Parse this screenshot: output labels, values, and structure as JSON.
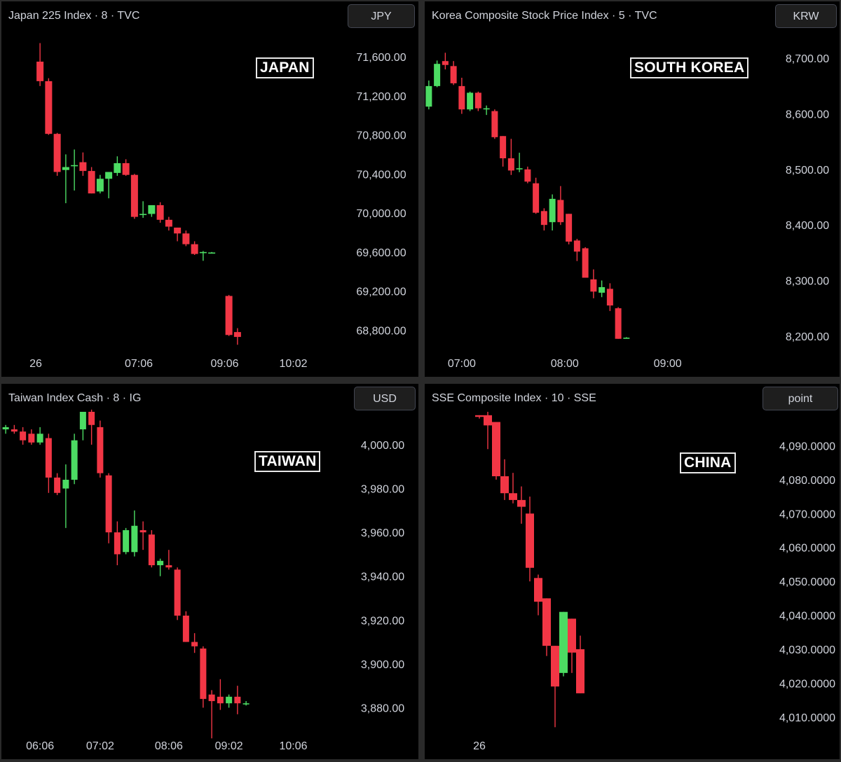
{
  "colors": {
    "up": "#4cdc63",
    "down": "#f23645",
    "background": "#000000",
    "text": "#d1d4dc"
  },
  "chart_data": [
    {
      "type": "candlestick",
      "title": "Japan 225 Index · 8 · TVC",
      "currency": "JPY",
      "country_label": "JAPAN",
      "ylim": [
        68580,
        71880
      ],
      "yticks": [
        68800,
        69200,
        69600,
        70000,
        70400,
        70800,
        71200,
        71600
      ],
      "ytick_labels": [
        "68,800.00",
        "69,200.00",
        "69,600.00",
        "70,000.00",
        "70,400.00",
        "70,800.00",
        "71,200.00",
        "71,600.00"
      ],
      "xlim": [
        0,
        40
      ],
      "xticks": [
        {
          "x": 4,
          "label": "26"
        },
        {
          "x": 16,
          "label": "07:06"
        },
        {
          "x": 26,
          "label": "09:06"
        },
        {
          "x": 34,
          "label": "10:02"
        }
      ],
      "candles": [
        {
          "x": 4.5,
          "o": 71550,
          "h": 71740,
          "l": 71300,
          "c": 71350
        },
        {
          "x": 5.5,
          "o": 71350,
          "h": 71380,
          "l": 70800,
          "c": 70810
        },
        {
          "x": 6.5,
          "o": 70810,
          "h": 70820,
          "l": 70380,
          "c": 70420
        },
        {
          "x": 7.5,
          "o": 70440,
          "h": 70600,
          "l": 70100,
          "c": 70470
        },
        {
          "x": 8.5,
          "o": 70490,
          "h": 70650,
          "l": 70230,
          "c": 70490
        },
        {
          "x": 9.5,
          "o": 70520,
          "h": 70620,
          "l": 70380,
          "c": 70430
        },
        {
          "x": 10.5,
          "o": 70430,
          "h": 70470,
          "l": 70200,
          "c": 70200
        },
        {
          "x": 11.5,
          "o": 70220,
          "h": 70390,
          "l": 70200,
          "c": 70350
        },
        {
          "x": 12.5,
          "o": 70350,
          "h": 70410,
          "l": 70150,
          "c": 70420
        },
        {
          "x": 13.5,
          "o": 70410,
          "h": 70580,
          "l": 70380,
          "c": 70510
        },
        {
          "x": 14.5,
          "o": 70510,
          "h": 70550,
          "l": 70380,
          "c": 70390
        },
        {
          "x": 15.5,
          "o": 70390,
          "h": 70400,
          "l": 69940,
          "c": 69960
        },
        {
          "x": 16.5,
          "o": 69980,
          "h": 70120,
          "l": 69950,
          "c": 69990
        },
        {
          "x": 17.5,
          "o": 69990,
          "h": 70070,
          "l": 69960,
          "c": 70080
        },
        {
          "x": 18.5,
          "o": 70080,
          "h": 70110,
          "l": 69900,
          "c": 69930
        },
        {
          "x": 19.5,
          "o": 69930,
          "h": 69960,
          "l": 69820,
          "c": 69860
        },
        {
          "x": 20.5,
          "o": 69850,
          "h": 69850,
          "l": 69710,
          "c": 69790
        },
        {
          "x": 21.5,
          "o": 69790,
          "h": 69820,
          "l": 69660,
          "c": 69680
        },
        {
          "x": 22.5,
          "o": 69680,
          "h": 69710,
          "l": 69570,
          "c": 69580
        },
        {
          "x": 23.5,
          "o": 69590,
          "h": 69610,
          "l": 69510,
          "c": 69600
        },
        {
          "x": 24.5,
          "o": 69590,
          "h": 69600,
          "l": 69590,
          "c": 69595
        },
        {
          "x": 26.5,
          "o": 69150,
          "h": 69160,
          "l": 68740,
          "c": 68750
        },
        {
          "x": 27.5,
          "o": 68780,
          "h": 68820,
          "l": 68650,
          "c": 68730
        }
      ]
    },
    {
      "type": "candlestick",
      "title": "Korea Composite Stock Price Index · 5 · TVC",
      "currency": "KRW",
      "country_label": "SOUTH KOREA",
      "ylim": [
        8172,
        8752
      ],
      "yticks": [
        8200,
        8300,
        8400,
        8500,
        8600,
        8700
      ],
      "ytick_labels": [
        "8,200.00",
        "8,300.00",
        "8,400.00",
        "8,500.00",
        "8,600.00",
        "8,700.00"
      ],
      "xlim": [
        0,
        40
      ],
      "xticks": [
        {
          "x": 4.5,
          "label": "07:00"
        },
        {
          "x": 17,
          "label": "08:00"
        },
        {
          "x": 29.5,
          "label": "09:00"
        }
      ],
      "candles": [
        {
          "x": 0.5,
          "o": 8613,
          "h": 8660,
          "l": 8608,
          "c": 8650
        },
        {
          "x": 1.5,
          "o": 8650,
          "h": 8696,
          "l": 8648,
          "c": 8690
        },
        {
          "x": 2.5,
          "o": 8695,
          "h": 8710,
          "l": 8680,
          "c": 8688
        },
        {
          "x": 3.5,
          "o": 8686,
          "h": 8695,
          "l": 8652,
          "c": 8655
        },
        {
          "x": 4.5,
          "o": 8650,
          "h": 8665,
          "l": 8600,
          "c": 8608
        },
        {
          "x": 5.5,
          "o": 8608,
          "h": 8640,
          "l": 8605,
          "c": 8638
        },
        {
          "x": 6.5,
          "o": 8638,
          "h": 8640,
          "l": 8605,
          "c": 8610
        },
        {
          "x": 7.5,
          "o": 8608,
          "h": 8615,
          "l": 8598,
          "c": 8610
        },
        {
          "x": 8.5,
          "o": 8605,
          "h": 8608,
          "l": 8555,
          "c": 8558
        },
        {
          "x": 9.5,
          "o": 8560,
          "h": 8560,
          "l": 8505,
          "c": 8520
        },
        {
          "x": 10.5,
          "o": 8520,
          "h": 8555,
          "l": 8490,
          "c": 8498
        },
        {
          "x": 11.5,
          "o": 8500,
          "h": 8530,
          "l": 8495,
          "c": 8502
        },
        {
          "x": 12.5,
          "o": 8500,
          "h": 8505,
          "l": 8475,
          "c": 8478
        },
        {
          "x": 13.5,
          "o": 8475,
          "h": 8485,
          "l": 8420,
          "c": 8422
        },
        {
          "x": 14.5,
          "o": 8425,
          "h": 8430,
          "l": 8390,
          "c": 8400
        },
        {
          "x": 15.5,
          "o": 8405,
          "h": 8455,
          "l": 8390,
          "c": 8447
        },
        {
          "x": 16.5,
          "o": 8445,
          "h": 8470,
          "l": 8400,
          "c": 8405
        },
        {
          "x": 17.5,
          "o": 8420,
          "h": 8420,
          "l": 8365,
          "c": 8370
        },
        {
          "x": 18.5,
          "o": 8372,
          "h": 8375,
          "l": 8335,
          "c": 8352
        },
        {
          "x": 19.5,
          "o": 8358,
          "h": 8360,
          "l": 8305,
          "c": 8305
        },
        {
          "x": 20.5,
          "o": 8302,
          "h": 8320,
          "l": 8268,
          "c": 8280
        },
        {
          "x": 21.5,
          "o": 8278,
          "h": 8300,
          "l": 8270,
          "c": 8288
        },
        {
          "x": 22.5,
          "o": 8285,
          "h": 8295,
          "l": 8245,
          "c": 8255
        },
        {
          "x": 23.5,
          "o": 8250,
          "h": 8252,
          "l": 8195,
          "c": 8195
        },
        {
          "x": 24.5,
          "o": 8197,
          "h": 8198,
          "l": 8196,
          "c": 8197
        }
      ]
    },
    {
      "type": "candlestick",
      "title": "Taiwan Index Cash · 8 · IG",
      "currency": "USD",
      "country_label": "TAIWAN",
      "ylim": [
        3868,
        4015
      ],
      "yticks": [
        3880,
        3900,
        3920,
        3940,
        3960,
        3980,
        4000
      ],
      "ytick_labels": [
        "3,880.00",
        "3,900.00",
        "3,920.00",
        "3,940.00",
        "3,960.00",
        "3,980.00",
        "4,000.00"
      ],
      "xlim": [
        0,
        40
      ],
      "xticks": [
        {
          "x": 4.5,
          "label": "06:06"
        },
        {
          "x": 11.5,
          "label": "07:02"
        },
        {
          "x": 19.5,
          "label": "08:06"
        },
        {
          "x": 26.5,
          "label": "09:02"
        },
        {
          "x": 34,
          "label": "10:06"
        }
      ],
      "candles": [
        {
          "x": 0.5,
          "o": 4007,
          "h": 4009,
          "l": 4005,
          "c": 4008
        },
        {
          "x": 1.5,
          "o": 4007,
          "h": 4009,
          "l": 4005,
          "c": 4006
        },
        {
          "x": 2.5,
          "o": 4006,
          "h": 4008,
          "l": 4000,
          "c": 4002
        },
        {
          "x": 3.5,
          "o": 4005,
          "h": 4007,
          "l": 4000,
          "c": 4001
        },
        {
          "x": 4.5,
          "o": 4001,
          "h": 4008,
          "l": 4000,
          "c": 4005
        },
        {
          "x": 5.5,
          "o": 4003,
          "h": 4005,
          "l": 3978,
          "c": 3985
        },
        {
          "x": 6.5,
          "o": 3985,
          "h": 3987,
          "l": 3977,
          "c": 3978
        },
        {
          "x": 7.5,
          "o": 3980,
          "h": 3991,
          "l": 3962,
          "c": 3984
        },
        {
          "x": 8.5,
          "o": 3984,
          "h": 4005,
          "l": 3982,
          "c": 4002
        },
        {
          "x": 9.5,
          "o": 4007,
          "h": 4015,
          "l": 4002,
          "c": 4015
        },
        {
          "x": 10.5,
          "o": 4015,
          "h": 4016,
          "l": 4000,
          "c": 4009
        },
        {
          "x": 11.5,
          "o": 4008,
          "h": 4011,
          "l": 3985,
          "c": 3987
        },
        {
          "x": 12.5,
          "o": 3986,
          "h": 3987,
          "l": 3955,
          "c": 3960
        },
        {
          "x": 13.5,
          "o": 3960,
          "h": 3965,
          "l": 3945,
          "c": 3950
        },
        {
          "x": 14.5,
          "o": 3951,
          "h": 3962,
          "l": 3950,
          "c": 3961
        },
        {
          "x": 15.5,
          "o": 3951,
          "h": 3970,
          "l": 3949,
          "c": 3963
        },
        {
          "x": 16.5,
          "o": 3961,
          "h": 3965,
          "l": 3952,
          "c": 3960
        },
        {
          "x": 17.5,
          "o": 3959,
          "h": 3961,
          "l": 3944,
          "c": 3945
        },
        {
          "x": 18.5,
          "o": 3945,
          "h": 3948,
          "l": 3940,
          "c": 3947
        },
        {
          "x": 19.5,
          "o": 3945,
          "h": 3952,
          "l": 3943,
          "c": 3944
        },
        {
          "x": 20.5,
          "o": 3943,
          "h": 3944,
          "l": 3920,
          "c": 3922
        },
        {
          "x": 21.5,
          "o": 3922,
          "h": 3924,
          "l": 3910,
          "c": 3910
        },
        {
          "x": 22.5,
          "o": 3910,
          "h": 3914,
          "l": 3905,
          "c": 3908
        },
        {
          "x": 23.5,
          "o": 3907,
          "h": 3908,
          "l": 3880,
          "c": 3884
        },
        {
          "x": 24.5,
          "o": 3886,
          "h": 3888,
          "l": 3866,
          "c": 3883
        },
        {
          "x": 25.5,
          "o": 3885,
          "h": 3893,
          "l": 3879,
          "c": 3882
        },
        {
          "x": 26.5,
          "o": 3882,
          "h": 3886,
          "l": 3880,
          "c": 3885
        },
        {
          "x": 27.5,
          "o": 3885,
          "h": 3890,
          "l": 3877,
          "c": 3882
        },
        {
          "x": 28.5,
          "o": 3882,
          "h": 3883,
          "l": 3881,
          "c": 3882
        }
      ]
    },
    {
      "type": "candlestick",
      "title": "SSE Composite Index · 10 · SSE",
      "currency": "point",
      "country_label": "CHINA",
      "ylim": [
        4005,
        4100
      ],
      "yticks": [
        4010,
        4020,
        4030,
        4040,
        4050,
        4060,
        4070,
        4080,
        4090
      ],
      "ytick_labels": [
        "4,010.0000",
        "4,020.0000",
        "4,030.0000",
        "4,040.0000",
        "4,050.0000",
        "4,060.0000",
        "4,070.0000",
        "4,080.0000",
        "4,090.0000"
      ],
      "xlim": [
        0,
        40
      ],
      "xticks": [
        {
          "x": 6.5,
          "label": "26"
        }
      ],
      "candles": [
        {
          "x": 6.5,
          "o": 4099,
          "h": 4099,
          "l": 4098,
          "c": 4098.5
        },
        {
          "x": 7.5,
          "o": 4099,
          "h": 4100,
          "l": 4089,
          "c": 4096
        },
        {
          "x": 8.5,
          "o": 4097,
          "h": 4097,
          "l": 4080,
          "c": 4081
        },
        {
          "x": 9.5,
          "o": 4081,
          "h": 4086,
          "l": 4074,
          "c": 4076
        },
        {
          "x": 10.5,
          "o": 4076,
          "h": 4082,
          "l": 4073,
          "c": 4074
        },
        {
          "x": 11.5,
          "o": 4074,
          "h": 4078,
          "l": 4067,
          "c": 4072
        },
        {
          "x": 12.5,
          "o": 4070,
          "h": 4075,
          "l": 4050,
          "c": 4054
        },
        {
          "x": 13.5,
          "o": 4051,
          "h": 4052,
          "l": 4040,
          "c": 4044
        },
        {
          "x": 14.5,
          "o": 4045,
          "h": 4045,
          "l": 4028,
          "c": 4031
        },
        {
          "x": 15.5,
          "o": 4031,
          "h": 4031,
          "l": 4007,
          "c": 4019
        },
        {
          "x": 16.5,
          "o": 4023,
          "h": 4041,
          "l": 4022,
          "c": 4041
        },
        {
          "x": 17.5,
          "o": 4039,
          "h": 4039,
          "l": 4023,
          "c": 4029
        },
        {
          "x": 18.5,
          "o": 4030,
          "h": 4034,
          "l": 4017,
          "c": 4017
        }
      ]
    }
  ]
}
